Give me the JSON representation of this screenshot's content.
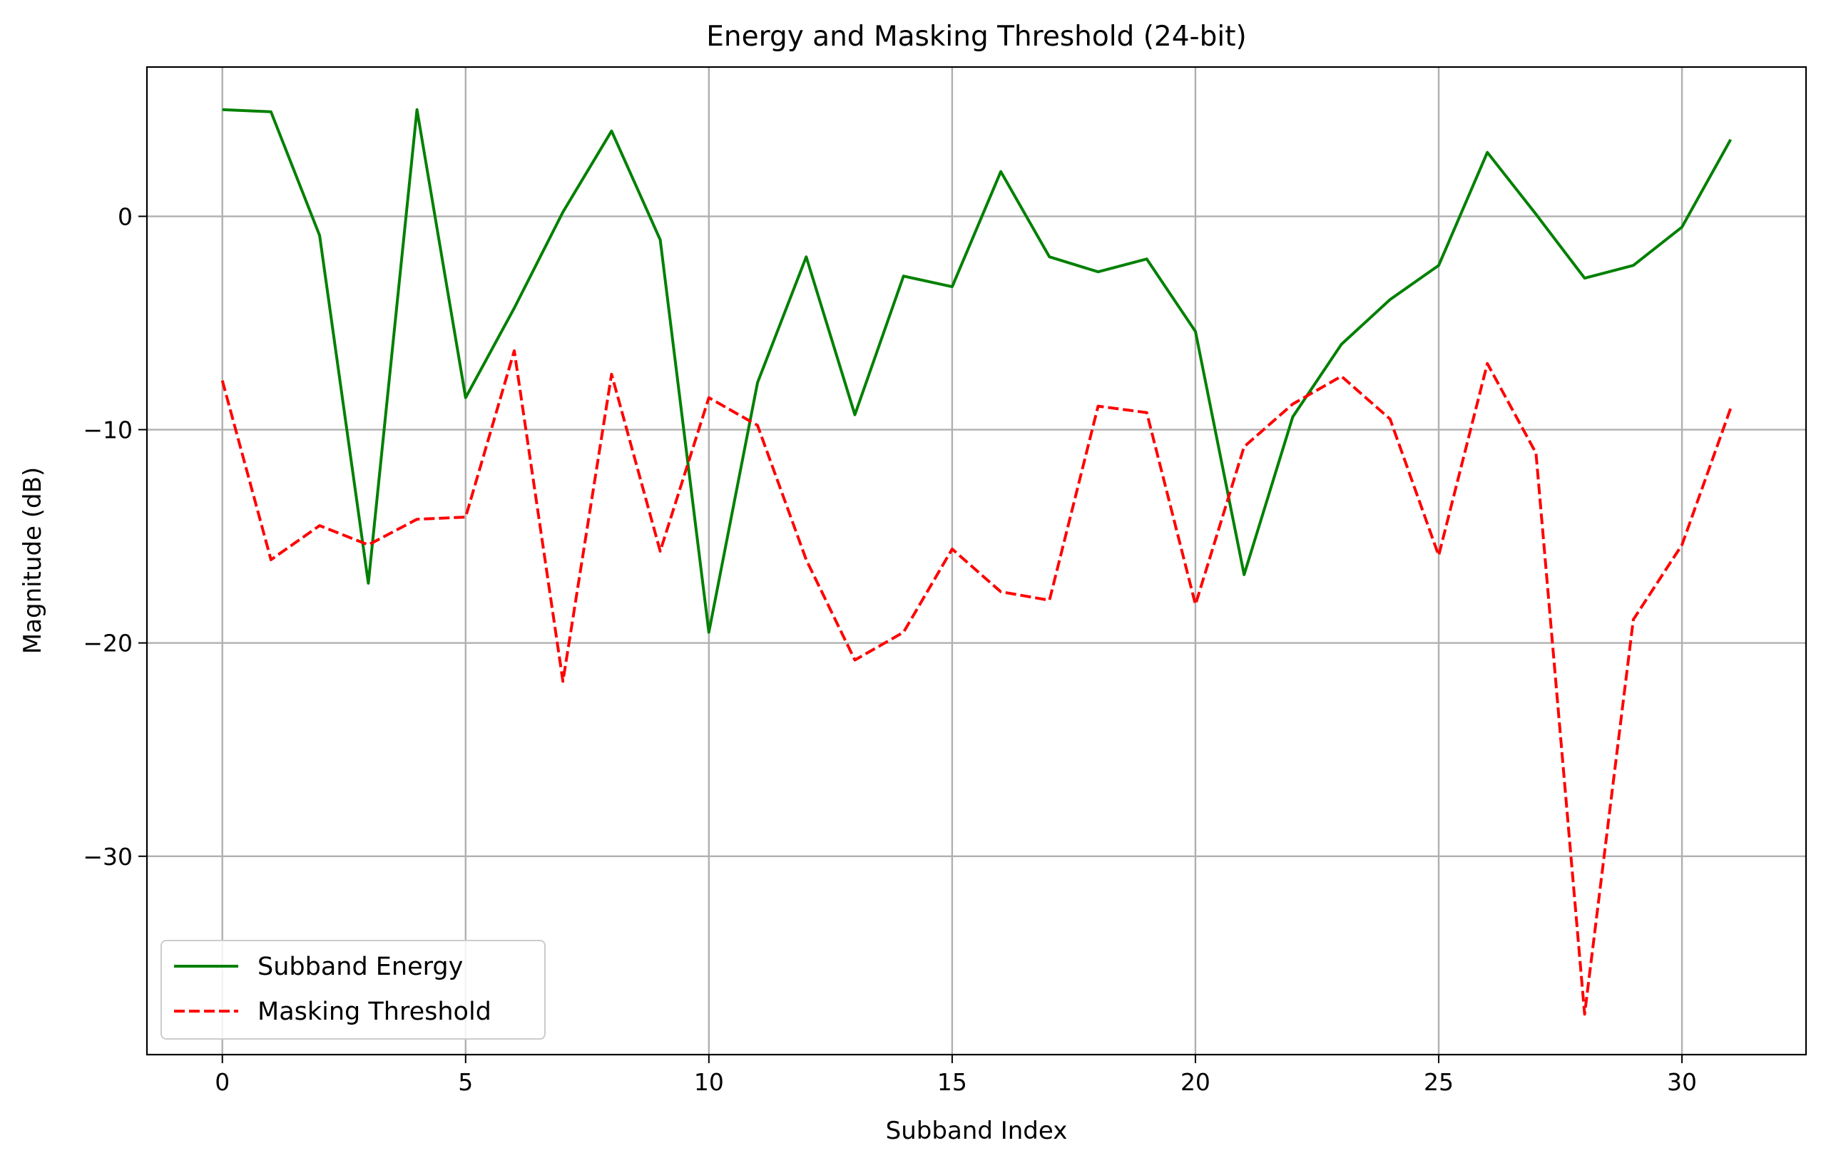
{
  "chart_data": {
    "type": "line",
    "title": "Energy and Masking Threshold (24-bit)",
    "xlabel": "Subband Index",
    "ylabel": "Magnitude (dB)",
    "xlim": [
      -1.55,
      32.55
    ],
    "ylim": [
      -39.3,
      7.0
    ],
    "grid": true,
    "legend_position": "lower-left",
    "x_ticks": [
      0,
      5,
      10,
      15,
      20,
      25,
      30
    ],
    "x_tick_labels": [
      "0",
      "5",
      "10",
      "15",
      "20",
      "25",
      "30"
    ],
    "y_ticks": [
      0,
      -10,
      -20,
      -30
    ],
    "y_tick_labels": [
      "0",
      "−10",
      "−20",
      "−30"
    ],
    "x": [
      0,
      1,
      2,
      3,
      4,
      5,
      6,
      7,
      8,
      9,
      10,
      11,
      12,
      13,
      14,
      15,
      16,
      17,
      18,
      19,
      20,
      21,
      22,
      23,
      24,
      25,
      26,
      27,
      28,
      29,
      30,
      31
    ],
    "series": [
      {
        "name": "Subband Energy",
        "color": "#008000",
        "style": "solid",
        "values": [
          5.0,
          4.9,
          -0.9,
          -17.2,
          5.0,
          -8.5,
          -4.3,
          0.2,
          4.0,
          -1.1,
          -19.5,
          -7.8,
          -1.9,
          -9.3,
          -2.8,
          -3.3,
          2.1,
          -1.9,
          -2.6,
          -2.0,
          -5.4,
          -16.8,
          -9.4,
          -6.0,
          -3.9,
          -2.3,
          3.0,
          0.1,
          -2.9,
          -2.3,
          -0.5,
          3.6
        ]
      },
      {
        "name": "Masking Threshold",
        "color": "#ff0000",
        "style": "dashed",
        "values": [
          -7.7,
          -16.1,
          -14.5,
          -15.4,
          -14.2,
          -14.1,
          -6.3,
          -21.8,
          -7.4,
          -15.7,
          -8.5,
          -9.8,
          -16.1,
          -20.8,
          -19.5,
          -15.6,
          -17.6,
          -18.0,
          -8.9,
          -9.2,
          -18.2,
          -10.8,
          -8.8,
          -7.5,
          -9.5,
          -15.9,
          -6.9,
          -11.1,
          -37.4,
          -18.9,
          -15.4,
          -9.0
        ]
      }
    ]
  }
}
